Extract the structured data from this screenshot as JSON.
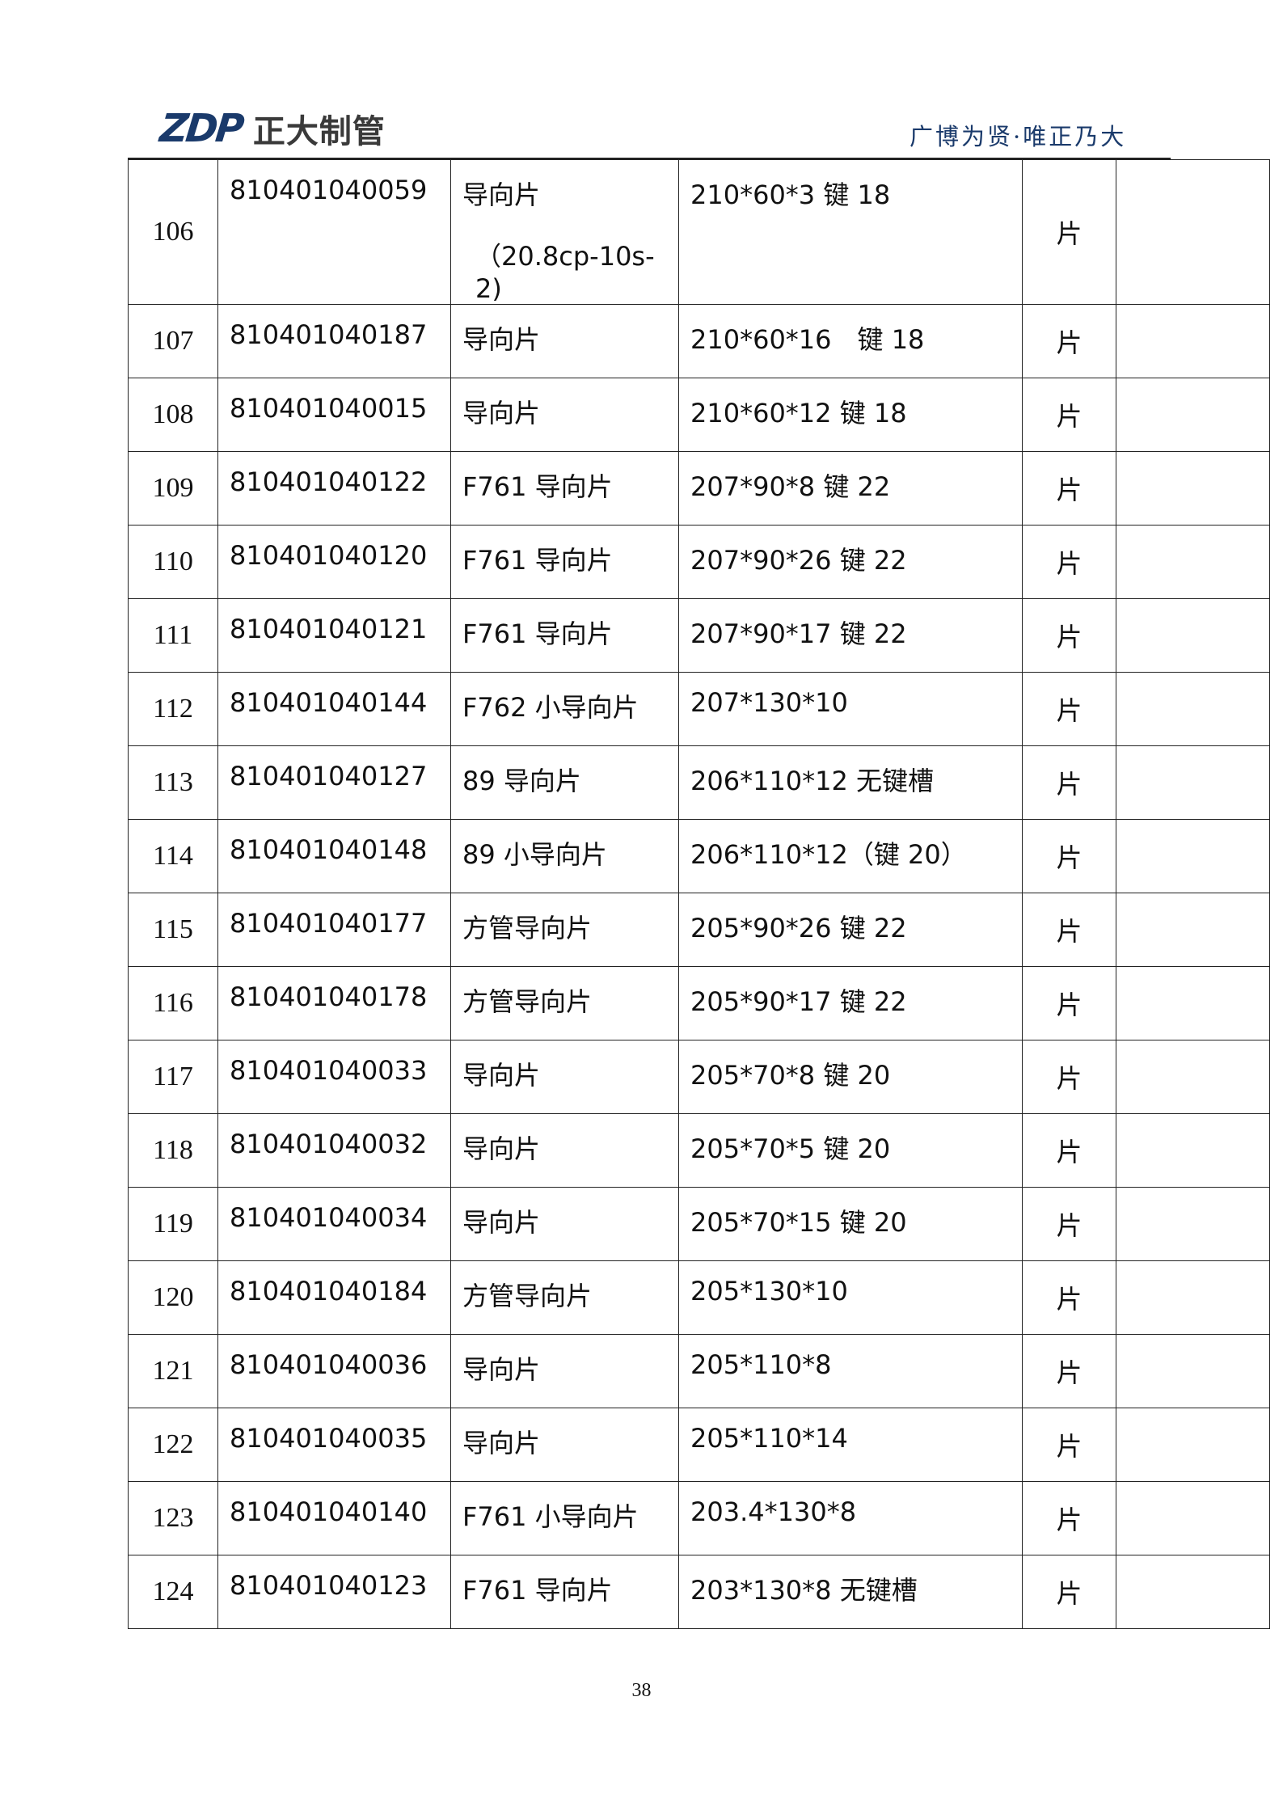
{
  "header": {
    "logo_mark": "ZDP",
    "logo_name": "正大制管",
    "slogan": "广博为贤·唯正乃大",
    "brand_color": "#1a3a6b"
  },
  "rows": [
    {
      "no": "106",
      "code": "810401040059",
      "name": "导向片",
      "name_extra": "（20.8cp-10s-2)",
      "spec": "210*60*3 键 18",
      "unit": "片",
      "remark": ""
    },
    {
      "no": "107",
      "code": "810401040187",
      "name": "导向片",
      "spec": "210*60*16　键 18",
      "unit": "片",
      "remark": ""
    },
    {
      "no": "108",
      "code": "810401040015",
      "name": "导向片",
      "spec": "210*60*12 键 18",
      "unit": "片",
      "remark": ""
    },
    {
      "no": "109",
      "code": "810401040122",
      "name": "F761 导向片",
      "spec": "207*90*8 键 22",
      "unit": "片",
      "remark": ""
    },
    {
      "no": "110",
      "code": "810401040120",
      "name": "F761 导向片",
      "spec": "207*90*26 键 22",
      "unit": "片",
      "remark": ""
    },
    {
      "no": "111",
      "code": "810401040121",
      "name": "F761 导向片",
      "spec": "207*90*17 键 22",
      "unit": "片",
      "remark": ""
    },
    {
      "no": "112",
      "code": "810401040144",
      "name": "F762 小导向片",
      "spec": "207*130*10",
      "unit": "片",
      "remark": ""
    },
    {
      "no": "113",
      "code": "810401040127",
      "name": "89 导向片",
      "spec": "206*110*12 无键槽",
      "unit": "片",
      "remark": ""
    },
    {
      "no": "114",
      "code": "810401040148",
      "name": "89 小导向片",
      "spec": "206*110*12（键 20）",
      "unit": "片",
      "remark": ""
    },
    {
      "no": "115",
      "code": "810401040177",
      "name": "方管导向片",
      "spec": "205*90*26 键 22",
      "unit": "片",
      "remark": ""
    },
    {
      "no": "116",
      "code": "810401040178",
      "name": "方管导向片",
      "spec": "205*90*17 键 22",
      "unit": "片",
      "remark": ""
    },
    {
      "no": "117",
      "code": "810401040033",
      "name": "导向片",
      "spec": "205*70*8 键 20",
      "unit": "片",
      "remark": ""
    },
    {
      "no": "118",
      "code": "810401040032",
      "name": "导向片",
      "spec": "205*70*5 键 20",
      "unit": "片",
      "remark": ""
    },
    {
      "no": "119",
      "code": "810401040034",
      "name": "导向片",
      "spec": "205*70*15 键 20",
      "unit": "片",
      "remark": ""
    },
    {
      "no": "120",
      "code": "810401040184",
      "name": "方管导向片",
      "spec": "205*130*10",
      "unit": "片",
      "remark": ""
    },
    {
      "no": "121",
      "code": "810401040036",
      "name": "导向片",
      "spec": "205*110*8",
      "unit": "片",
      "remark": ""
    },
    {
      "no": "122",
      "code": "810401040035",
      "name": "导向片",
      "spec": "205*110*14",
      "unit": "片",
      "remark": ""
    },
    {
      "no": "123",
      "code": "810401040140",
      "name": "F761 小导向片",
      "spec": "203.4*130*8",
      "unit": "片",
      "remark": ""
    },
    {
      "no": "124",
      "code": "810401040123",
      "name": "F761 导向片",
      "spec": "203*130*8 无键槽",
      "unit": "片",
      "remark": ""
    }
  ],
  "footer": {
    "page_number": "38"
  }
}
